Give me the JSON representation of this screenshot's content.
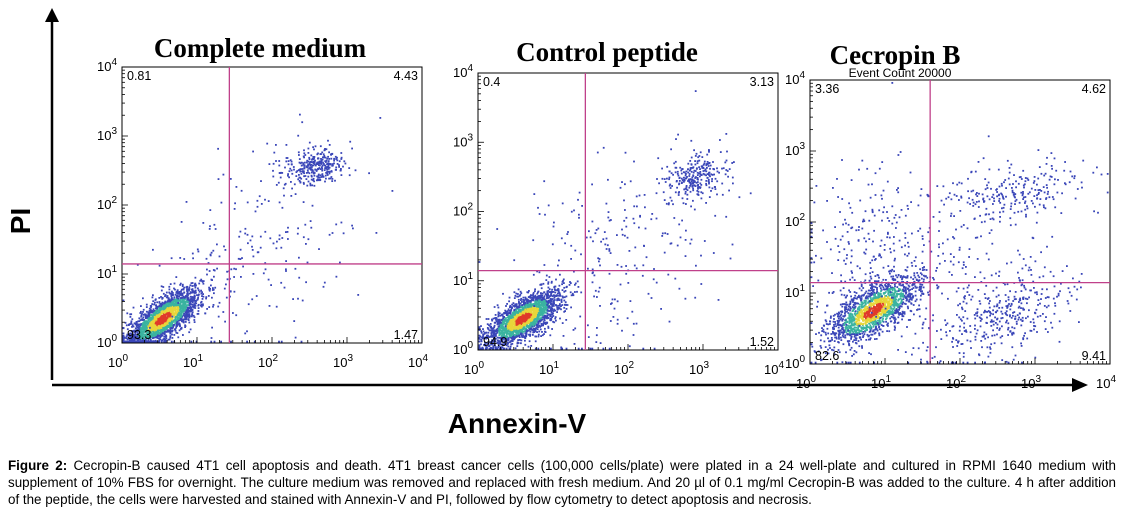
{
  "figure": {
    "y_axis_label": "PI",
    "x_axis_label": "Annexin-V",
    "caption_label": "Figure 2:",
    "caption_text": " Cecropin-B caused 4T1 cell apoptosis and death. 4T1 breast cancer cells (100,000 cells/plate) were plated in a 24 well-plate and cultured in RPMI 1640 medium with supplement of 10% FBS for overnight. The culture medium was removed and replaced with fresh medium. And 20 µl of 0.1 mg/ml Cecropin-B was added to the culture. 4 h after addition of the peptide, the cells were harvested and stained with Annexin-V and PI, followed by flow cytometry to detect apoptosis and necrosis."
  },
  "colors": {
    "gate": "#c0408a",
    "low_density": "#3a46b8",
    "mid_density": "#3bb3a0",
    "high_density": "#e8d63a",
    "peak_density": "#e03a2a"
  },
  "chart_data": [
    {
      "type": "scatter",
      "title": "Complete medium",
      "xscale": "log",
      "yscale": "log",
      "xlim": [
        1,
        10000
      ],
      "ylim": [
        1,
        10000
      ],
      "x_ticks": [
        "10^0",
        "10^1",
        "10^2",
        "10^3",
        "10^4"
      ],
      "y_ticks": [
        "10^0",
        "10^1",
        "10^2",
        "10^3",
        "10^4"
      ],
      "gate": {
        "x": 27,
        "y": 14
      },
      "quadrants": {
        "upper_left": "0.81",
        "upper_right": "4.43",
        "lower_left": "93.3",
        "lower_right": "1.47"
      },
      "annotation": "",
      "populations": [
        {
          "name": "live",
          "cx": 0.55,
          "cy": 0.35,
          "sx": 0.25,
          "sy": 0.22,
          "tilt": 0.75,
          "share": 0.8,
          "dense": true
        },
        {
          "name": "late",
          "cx": 2.6,
          "cy": 2.55,
          "sx": 0.22,
          "sy": 0.13,
          "tilt": 0.2,
          "share": 0.12,
          "dense": false
        },
        {
          "name": "scatter",
          "cx": 1.7,
          "cy": 1.3,
          "sx": 0.7,
          "sy": 0.8,
          "tilt": 0.3,
          "share": 0.08,
          "dense": false
        }
      ]
    },
    {
      "type": "scatter",
      "title": "Control peptide",
      "xscale": "log",
      "yscale": "log",
      "xlim": [
        1,
        10000
      ],
      "ylim": [
        1,
        10000
      ],
      "x_ticks": [
        "10^0",
        "10^1",
        "10^2",
        "10^3",
        "10^4"
      ],
      "y_ticks": [
        "10^0",
        "10^1",
        "10^2",
        "10^3",
        "10^4"
      ],
      "gate": {
        "x": 27,
        "y": 14
      },
      "quadrants": {
        "upper_left": "0.4",
        "upper_right": "3.13",
        "lower_left": "94.9",
        "lower_right": "1.52"
      },
      "annotation": "",
      "populations": [
        {
          "name": "live",
          "cx": 0.6,
          "cy": 0.45,
          "sx": 0.25,
          "sy": 0.2,
          "tilt": 0.7,
          "share": 0.8,
          "dense": true
        },
        {
          "name": "late",
          "cx": 2.9,
          "cy": 2.5,
          "sx": 0.2,
          "sy": 0.18,
          "tilt": 0.4,
          "share": 0.1,
          "dense": false
        },
        {
          "name": "scatter",
          "cx": 1.8,
          "cy": 1.3,
          "sx": 0.7,
          "sy": 0.8,
          "tilt": 0.4,
          "share": 0.1,
          "dense": false
        }
      ]
    },
    {
      "type": "scatter",
      "title": "Cecropin B",
      "xscale": "log",
      "yscale": "log",
      "xlim": [
        1,
        10000
      ],
      "ylim": [
        1,
        10000
      ],
      "x_ticks": [
        "10^0",
        "10^1",
        "10^2",
        "10^3",
        "10^4"
      ],
      "y_ticks": [
        "10^0",
        "10^1",
        "10^2",
        "10^3",
        "10^4"
      ],
      "gate": {
        "x": 40,
        "y": 14
      },
      "quadrants": {
        "upper_left": "3.36",
        "upper_right": "4.62",
        "lower_left": "82.6",
        "lower_right": "9.41"
      },
      "annotation": "Event Count 20000",
      "populations": [
        {
          "name": "live",
          "cx": 0.85,
          "cy": 0.75,
          "sx": 0.3,
          "sy": 0.24,
          "tilt": 0.7,
          "share": 0.62,
          "dense": true
        },
        {
          "name": "early",
          "cx": 2.6,
          "cy": 0.7,
          "sx": 0.45,
          "sy": 0.35,
          "tilt": 0.5,
          "share": 0.14,
          "dense": false
        },
        {
          "name": "late",
          "cx": 2.7,
          "cy": 2.4,
          "sx": 0.5,
          "sy": 0.22,
          "tilt": 0.35,
          "share": 0.09,
          "dense": false
        },
        {
          "name": "upper_left",
          "cx": 0.8,
          "cy": 1.6,
          "sx": 0.4,
          "sy": 0.5,
          "tilt": 0.0,
          "share": 0.07,
          "dense": false
        },
        {
          "name": "scatter",
          "cx": 1.6,
          "cy": 1.4,
          "sx": 0.8,
          "sy": 0.8,
          "tilt": 0.2,
          "share": 0.08,
          "dense": false
        }
      ]
    }
  ]
}
